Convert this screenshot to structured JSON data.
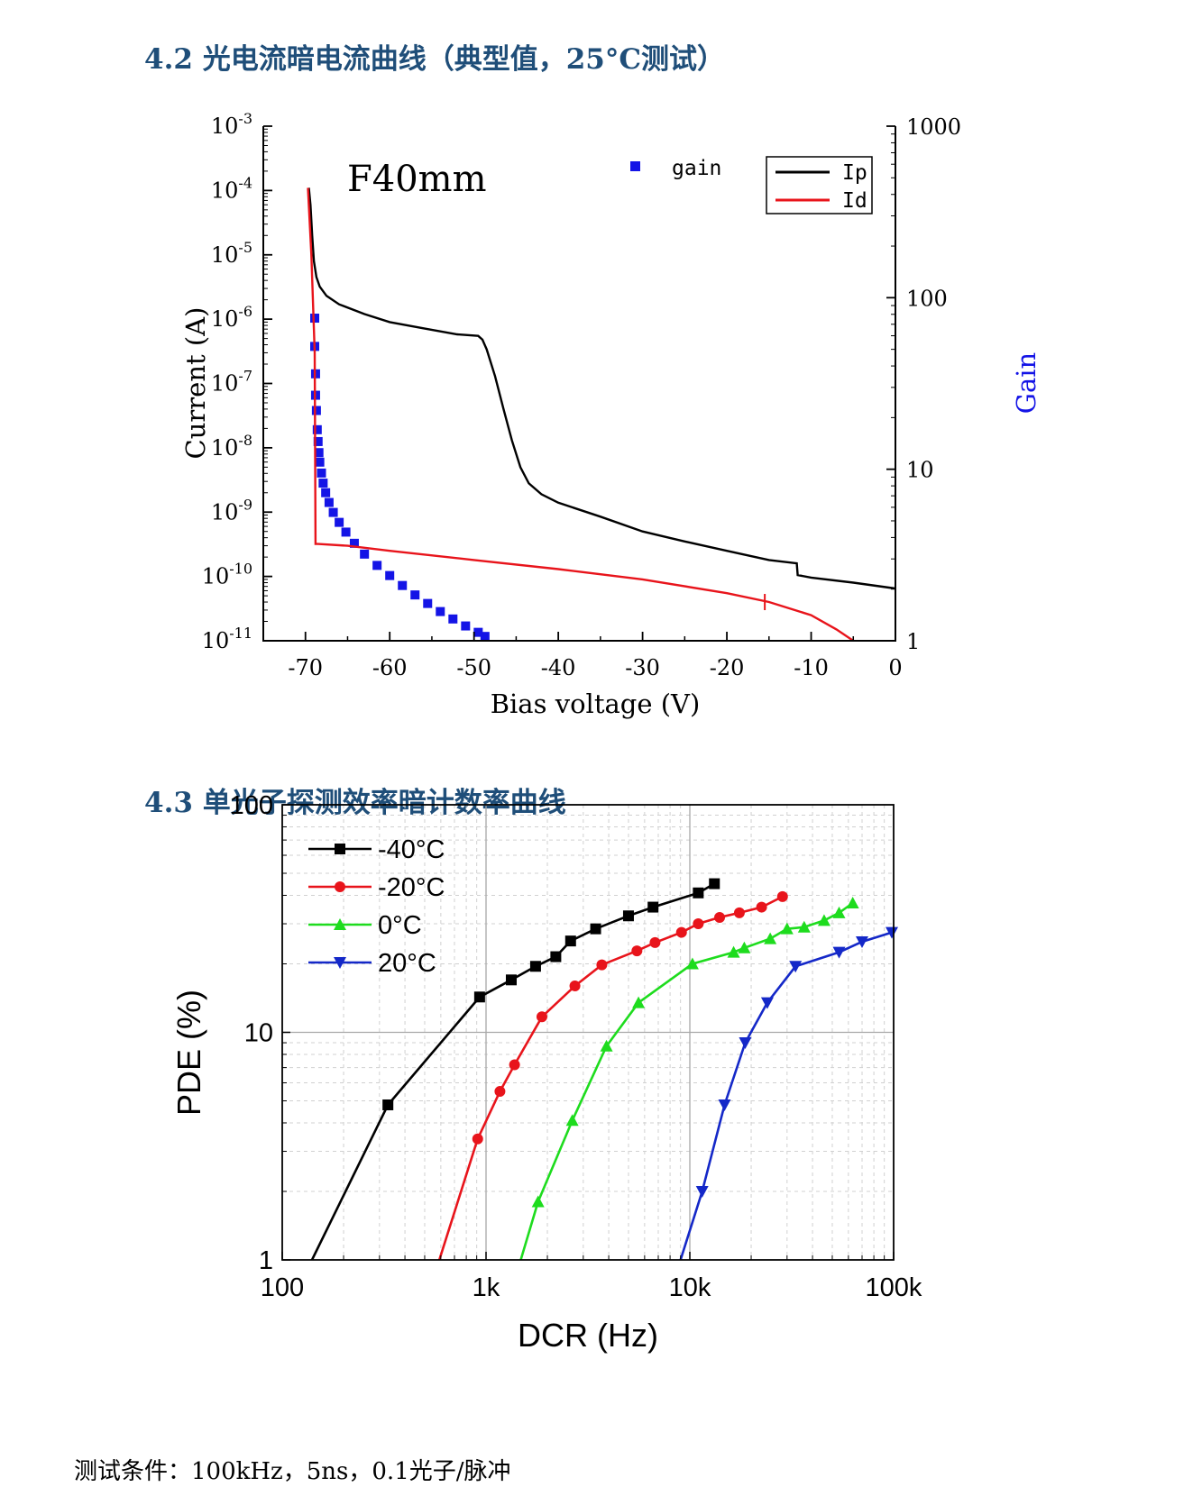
{
  "headings": {
    "section_42": "4.2 光电流暗电流曲线（典型值，25°C测试）",
    "section_43": "4.3 单光子探测效率暗计数率曲线"
  },
  "footer": {
    "test_conditions": "测试条件：100kHz，5ns，0.1光子/脉冲"
  },
  "chart_data": [
    {
      "type": "line",
      "annotation": "F40mm",
      "xlabel": "Bias voltage (V)",
      "ylabel": "Current (A)",
      "y2label": "Gain",
      "xlim": [
        -75,
        0
      ],
      "ylim": [
        1e-11,
        0.001
      ],
      "y2lim": [
        1,
        1000
      ],
      "yscale": "log",
      "y2scale": "log",
      "x_ticks": [
        "-70",
        "-60",
        "-50",
        "-40",
        "-30",
        "-20",
        "-10",
        "0"
      ],
      "y_ticks": [
        {
          "base": "10",
          "exp": "-3"
        },
        {
          "base": "10",
          "exp": "-4"
        },
        {
          "base": "10",
          "exp": "-5"
        },
        {
          "base": "10",
          "exp": "-6"
        },
        {
          "base": "10",
          "exp": "-7"
        },
        {
          "base": "10",
          "exp": "-8"
        },
        {
          "base": "10",
          "exp": "-9"
        },
        {
          "base": "10",
          "exp": "-10"
        },
        {
          "base": "10",
          "exp": "-11"
        }
      ],
      "y2_ticks": [
        "1000",
        "100",
        "10",
        "1"
      ],
      "legend_placement": "top-right",
      "colors": {
        "Ip": "#000000",
        "Id": "#e8141b",
        "gain": "#1414e6",
        "gain_label": "#1414e6"
      },
      "series": [
        {
          "name": "Ip",
          "x": [
            -69.6,
            -69.4,
            -69.2,
            -69.0,
            -68.7,
            -68.3,
            -67.5,
            -66.0,
            -63.0,
            -60.0,
            -56.0,
            -52.0,
            -49.5,
            -49.0,
            -48.5,
            -47.5,
            -46.5,
            -45.5,
            -44.5,
            -43.5,
            -42.0,
            -40.0,
            -35.0,
            -30.0,
            -25.0,
            -20.0,
            -15.0,
            -11.7,
            -11.6,
            -10.0,
            -5.0,
            0.0
          ],
          "values": [
            0.00011,
            6e-05,
            2e-05,
            8e-06,
            4.5e-06,
            3.2e-06,
            2.3e-06,
            1.7e-06,
            1.2e-06,
            9e-07,
            7.2e-07,
            5.8e-07,
            5.5e-07,
            4.8e-07,
            3.4e-07,
            1.3e-07,
            4e-08,
            1.3e-08,
            5e-09,
            2.8e-09,
            1.9e-09,
            1.4e-09,
            8.5e-10,
            5e-10,
            3.5e-10,
            2.5e-10,
            1.8e-10,
            1.6e-10,
            1.05e-10,
            9.6e-11,
            8e-11,
            6.5e-11
          ]
        },
        {
          "name": "Id",
          "x": [
            -69.7,
            -69.3,
            -68.9,
            -68.8,
            -68.5,
            -65.0,
            -60.0,
            -50.0,
            -40.0,
            -30.0,
            -20.0,
            -15.0,
            -10.0,
            -7.0,
            -5.0
          ],
          "values": [
            0.00011,
            1e-05,
            3e-07,
            3.2e-10,
            3.2e-10,
            3e-10,
            2.5e-10,
            1.8e-10,
            1.3e-10,
            9e-11,
            5.5e-11,
            4e-11,
            2.5e-11,
            1.5e-11,
            1e-11
          ]
        },
        {
          "name": "gain",
          "axis": "right",
          "x": [
            -68.9,
            -68.9,
            -68.8,
            -68.8,
            -68.7,
            -68.6,
            -68.5,
            -68.4,
            -68.3,
            -68.1,
            -67.9,
            -67.6,
            -67.2,
            -66.7,
            -66.0,
            -65.2,
            -64.2,
            -63.0,
            -61.5,
            -60.0,
            -58.5,
            -57.0,
            -55.5,
            -54.0,
            -52.5,
            -51.0,
            -49.5,
            -48.7
          ],
          "values": [
            76,
            52,
            36,
            27,
            22,
            17,
            14.5,
            12.5,
            11,
            9.5,
            8.3,
            7.3,
            6.4,
            5.6,
            4.9,
            4.3,
            3.7,
            3.2,
            2.75,
            2.4,
            2.1,
            1.85,
            1.65,
            1.48,
            1.34,
            1.22,
            1.12,
            1.06
          ]
        }
      ]
    },
    {
      "type": "line",
      "xlabel": "DCR (Hz)",
      "ylabel": "PDE (%)",
      "xscale": "log",
      "yscale": "log",
      "xlim": [
        100,
        100000
      ],
      "ylim": [
        1,
        100
      ],
      "grid": true,
      "x_ticks": [
        "100",
        "1k",
        "10k",
        "100k"
      ],
      "y_ticks": [
        "100",
        "10",
        "1"
      ],
      "legend_placement": "top-left",
      "series": [
        {
          "name": "-40°C",
          "color": "#000000",
          "marker": "square",
          "x": [
            140,
            330,
            930,
            1330,
            1750,
            2200,
            2600,
            3450,
            5000,
            6600,
            11000,
            13200
          ],
          "values": [
            1.0,
            4.8,
            14.3,
            17.0,
            19.5,
            21.5,
            25.2,
            28.5,
            32.5,
            35.5,
            41.0,
            45.0
          ],
          "marker_from": 1
        },
        {
          "name": "-20°C",
          "color": "#e8141b",
          "marker": "circle",
          "x": [
            590,
            910,
            1170,
            1380,
            1880,
            2730,
            3700,
            5500,
            6750,
            9100,
            11000,
            14000,
            17500,
            22500,
            28500
          ],
          "values": [
            1.0,
            3.4,
            5.5,
            7.2,
            11.7,
            16.0,
            19.8,
            22.8,
            24.8,
            27.5,
            30.0,
            32.0,
            33.5,
            35.5,
            39.5
          ],
          "marker_from": 1
        },
        {
          "name": "0°C",
          "color": "#1edc1e",
          "marker": "triangle-up",
          "x": [
            1480,
            1800,
            2650,
            3900,
            5600,
            10300,
            16400,
            18500,
            24800,
            30000,
            36400,
            45600,
            54000,
            63000
          ],
          "values": [
            1.0,
            1.8,
            4.1,
            8.7,
            13.5,
            20.0,
            22.5,
            23.5,
            25.8,
            28.5,
            29.0,
            31.0,
            33.5,
            37.0
          ],
          "marker_from": 1
        },
        {
          "name": "20°C",
          "color": "#1428c8",
          "marker": "triangle-down",
          "x": [
            9000,
            11500,
            14800,
            18700,
            24000,
            33000,
            54000,
            70000,
            98000
          ],
          "values": [
            1.0,
            2.0,
            4.8,
            9.0,
            13.5,
            19.5,
            22.5,
            25.0,
            27.5
          ],
          "marker_from": 1
        }
      ]
    }
  ]
}
